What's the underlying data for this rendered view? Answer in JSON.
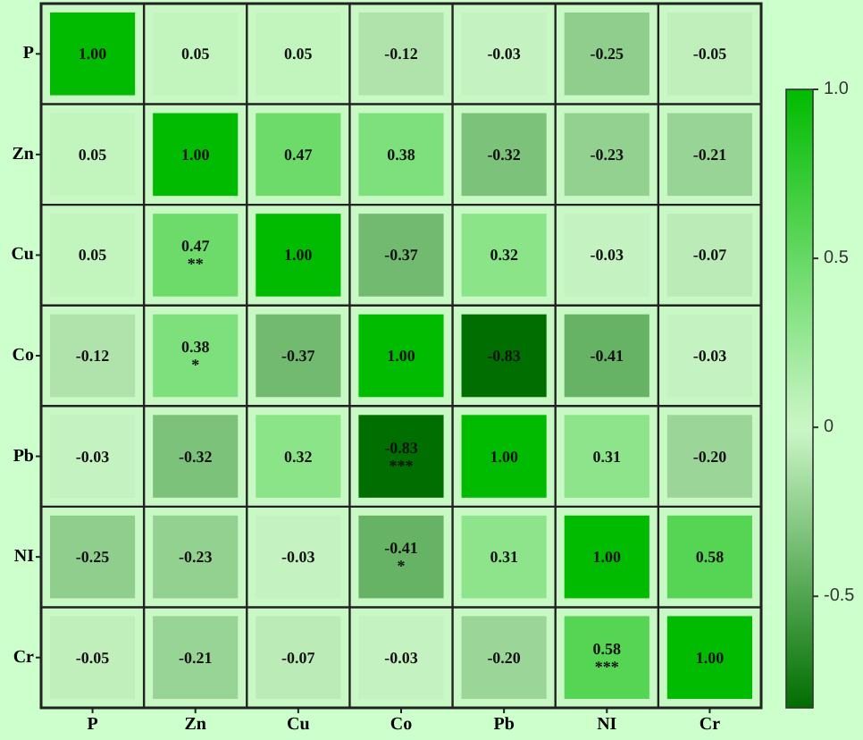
{
  "chart_data": {
    "type": "heatmap",
    "categories": [
      "P",
      "Zn",
      "Cu",
      "Co",
      "Pb",
      "NI",
      "Cr"
    ],
    "y_categories": [
      "P",
      "Zn",
      "Cu",
      "Co",
      "Pb",
      "NI",
      "Cr"
    ],
    "cells": [
      [
        1.0,
        0.05,
        0.05,
        -0.12,
        -0.03,
        -0.25,
        -0.05
      ],
      [
        0.05,
        1.0,
        0.47,
        0.38,
        -0.32,
        -0.23,
        -0.21
      ],
      [
        0.05,
        0.47,
        1.0,
        -0.37,
        0.32,
        -0.03,
        -0.07
      ],
      [
        -0.12,
        0.38,
        -0.37,
        1.0,
        -0.83,
        -0.41,
        -0.03
      ],
      [
        -0.03,
        -0.32,
        0.32,
        -0.83,
        1.0,
        0.31,
        -0.2
      ],
      [
        -0.25,
        -0.23,
        -0.03,
        -0.41,
        0.31,
        1.0,
        0.58
      ],
      [
        -0.05,
        -0.21,
        -0.07,
        -0.03,
        -0.2,
        0.58,
        1.0
      ]
    ],
    "cell_labels": [
      [
        "1.00",
        "0.05",
        "0.05",
        "-0.12",
        "-0.03",
        "-0.25",
        "-0.05"
      ],
      [
        "0.05",
        "1.00",
        "0.47",
        "0.38",
        "-0.32",
        "-0.23",
        "-0.21"
      ],
      [
        "0.05",
        "0.47\n**",
        "1.00",
        "-0.37",
        "0.32",
        "-0.03",
        "-0.07"
      ],
      [
        "-0.12",
        "0.38\n*",
        "-0.37",
        "1.00",
        "-0.83",
        "-0.41",
        "-0.03"
      ],
      [
        "-0.03",
        "-0.32",
        "0.32",
        "-0.83\n***",
        "1.00",
        "0.31",
        "-0.20"
      ],
      [
        "-0.25",
        "-0.23",
        "-0.03",
        "-0.41\n*",
        "0.31",
        "1.00",
        "0.58"
      ],
      [
        "-0.05",
        "-0.21",
        "-0.07",
        "-0.03",
        "-0.20",
        "0.58\n***",
        "1.00"
      ]
    ],
    "clim": [
      -0.83,
      1
    ],
    "cticks": [
      {
        "value": 1,
        "label": "1.0"
      },
      0.5,
      0,
      -0.5
    ]
  }
}
